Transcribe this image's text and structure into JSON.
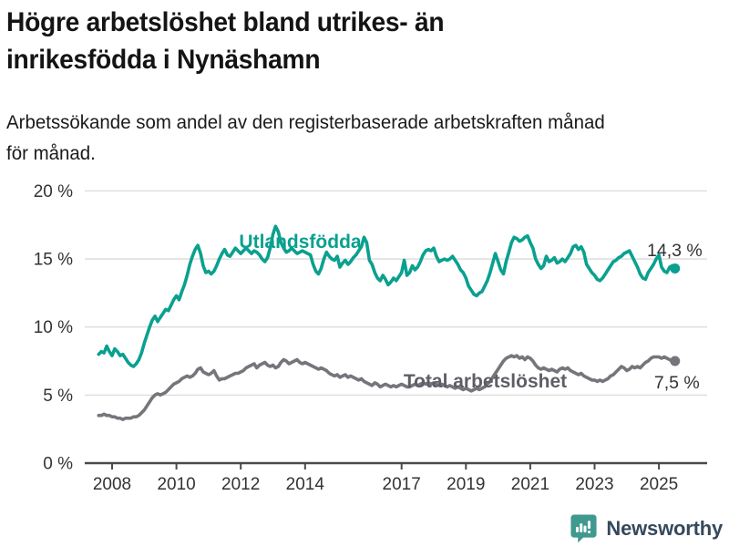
{
  "header": {
    "title_lines": [
      "Högre arbetslöshet bland utrikes- än",
      "inrikesfödda i Nynäshamn"
    ],
    "subtitle_lines": [
      "Arbetssökande som andel av den registerbaserade arbetskraften månad",
      "för månad."
    ]
  },
  "footer": {
    "brand": "Newsworthy",
    "logo_icon": "newsworthy-speech-bubble-bar-chart-icon"
  },
  "colors": {
    "teal": "#0aa08f",
    "gray_line": "#76757b",
    "gray_label": "#5f5e66",
    "annotation": "#333333",
    "tick_text": "#333333",
    "grid": "#dcdcdc",
    "axis": "#4a4a4a",
    "title_text": "#141414",
    "brand_text": "#35485c",
    "logo_teal": "#40998f"
  },
  "chart_data": {
    "type": "line",
    "title": "Högre arbetslöshet bland utrikes- än inrikesfödda i Nynäshamn",
    "subtitle": "Arbetssökande som andel av den registerbaserade arbetskraften månad för månad.",
    "x_unit": "year, monthly samples",
    "x_start": 2007.583,
    "x_step": 0.083333,
    "xlim": [
      2007.15,
      2026.5
    ],
    "ylim": [
      0,
      20
    ],
    "grid": "horizontal",
    "xticks": [
      2008,
      2010,
      2012,
      2014,
      2017,
      2019,
      2021,
      2023,
      2025
    ],
    "yticks": [
      {
        "value": 0,
        "label": "0 %"
      },
      {
        "value": 5,
        "label": "5 %"
      },
      {
        "value": 10,
        "label": "10 %"
      },
      {
        "value": 15,
        "label": "15 %"
      },
      {
        "value": 20,
        "label": "20 %"
      }
    ],
    "series": [
      {
        "id": "utlandsfodda",
        "name": "Utlandsfödda",
        "color": "#0aa08f",
        "label_color": "#0aa08f",
        "label_pos": [
          2011.95,
          15.81
        ],
        "end_label": "14,3 %",
        "end_value": 14.3,
        "end_label_offset": [
          30,
          -13.5
        ],
        "values": [
          8.0,
          8.2,
          8.1,
          8.6,
          8.2,
          7.9,
          8.4,
          8.2,
          7.9,
          8.0,
          7.7,
          7.4,
          7.2,
          7.1,
          7.3,
          7.6,
          8.1,
          8.8,
          9.4,
          10.0,
          10.5,
          10.8,
          10.4,
          10.7,
          11.0,
          11.3,
          11.2,
          11.6,
          12.0,
          12.3,
          12.0,
          12.6,
          13.1,
          13.8,
          14.6,
          15.2,
          15.7,
          16.0,
          15.4,
          14.5,
          14.0,
          14.1,
          13.9,
          14.1,
          14.5,
          15.0,
          15.4,
          15.7,
          15.3,
          15.2,
          15.5,
          15.8,
          15.6,
          15.4,
          15.6,
          15.8,
          15.6,
          15.4,
          15.6,
          15.5,
          15.3,
          15.0,
          14.8,
          15.1,
          15.8,
          16.8,
          17.4,
          17.0,
          16.2,
          15.8,
          15.5,
          15.6,
          15.8,
          15.6,
          15.4,
          15.5,
          15.6,
          15.5,
          15.4,
          15.3,
          14.6,
          14.1,
          13.9,
          14.3,
          15.0,
          15.5,
          15.2,
          15.0,
          14.9,
          15.2,
          14.4,
          14.7,
          14.9,
          14.6,
          14.8,
          15.1,
          15.3,
          15.6,
          15.9,
          16.6,
          16.2,
          14.9,
          14.6,
          14.0,
          13.6,
          13.4,
          13.8,
          13.5,
          13.1,
          13.3,
          13.6,
          13.4,
          13.7,
          14.0,
          14.9,
          13.8,
          14.0,
          14.5,
          14.2,
          14.4,
          14.8,
          15.3,
          15.6,
          15.7,
          15.6,
          15.8,
          15.2,
          14.8,
          14.9,
          15.0,
          14.9,
          15.0,
          15.2,
          14.9,
          14.6,
          14.2,
          14.0,
          13.6,
          13.0,
          12.7,
          12.4,
          12.3,
          12.5,
          12.6,
          13.0,
          13.4,
          14.0,
          14.7,
          15.4,
          14.8,
          14.2,
          13.9,
          14.8,
          15.5,
          16.2,
          16.6,
          16.5,
          16.3,
          16.4,
          16.6,
          16.7,
          16.2,
          15.8,
          15.0,
          14.6,
          14.3,
          14.5,
          15.2,
          14.8,
          14.9,
          15.1,
          14.7,
          14.8,
          15.0,
          14.8,
          15.1,
          15.4,
          15.9,
          16.0,
          15.7,
          15.9,
          15.5,
          14.6,
          14.3,
          14.0,
          13.8,
          13.5,
          13.4,
          13.6,
          13.9,
          14.2,
          14.5,
          14.8,
          14.9,
          15.1,
          15.2,
          15.4,
          15.5,
          15.6,
          15.2,
          14.8,
          14.4,
          13.9,
          13.6,
          13.5,
          14.0,
          14.3,
          14.6,
          15.0,
          15.3,
          14.4,
          14.1,
          14.0,
          14.4,
          14.5,
          14.3
        ]
      },
      {
        "id": "total-arbetsloshet",
        "name": "Total arbetslöshet",
        "color": "#76757b",
        "label_color": "#5f5e66",
        "label_pos": [
          2017.06,
          5.56
        ],
        "end_label": "7,5 %",
        "end_value": 7.5,
        "end_label_offset": [
          27,
          30
        ],
        "values": [
          3.5,
          3.5,
          3.6,
          3.5,
          3.5,
          3.4,
          3.4,
          3.3,
          3.3,
          3.2,
          3.3,
          3.3,
          3.3,
          3.4,
          3.4,
          3.5,
          3.7,
          3.9,
          4.2,
          4.5,
          4.8,
          5.0,
          5.1,
          5.0,
          5.1,
          5.2,
          5.4,
          5.6,
          5.8,
          5.9,
          6.0,
          6.2,
          6.3,
          6.4,
          6.3,
          6.4,
          6.6,
          6.9,
          7.0,
          6.7,
          6.6,
          6.5,
          6.6,
          6.8,
          6.4,
          6.1,
          6.2,
          6.2,
          6.3,
          6.4,
          6.5,
          6.6,
          6.6,
          6.7,
          6.8,
          7.0,
          7.1,
          7.2,
          7.3,
          7.0,
          7.2,
          7.3,
          7.4,
          7.2,
          7.1,
          7.2,
          7.0,
          7.1,
          7.4,
          7.6,
          7.5,
          7.3,
          7.4,
          7.5,
          7.6,
          7.4,
          7.3,
          7.4,
          7.3,
          7.2,
          7.1,
          7.0,
          6.9,
          7.0,
          6.9,
          6.8,
          6.6,
          6.5,
          6.4,
          6.5,
          6.3,
          6.4,
          6.5,
          6.3,
          6.4,
          6.3,
          6.2,
          6.1,
          6.2,
          6.0,
          5.9,
          5.8,
          5.7,
          5.9,
          5.8,
          5.6,
          5.7,
          5.8,
          5.7,
          5.6,
          5.7,
          5.6,
          5.7,
          5.8,
          5.7,
          5.6,
          5.6,
          5.7,
          5.8,
          5.7,
          5.8,
          5.9,
          5.8,
          5.9,
          5.8,
          5.9,
          5.8,
          5.7,
          5.8,
          5.7,
          5.6,
          5.7,
          5.6,
          5.5,
          5.6,
          5.5,
          5.4,
          5.5,
          5.4,
          5.3,
          5.4,
          5.5,
          5.4,
          5.5,
          5.6,
          5.8,
          6.0,
          6.3,
          6.6,
          6.9,
          7.2,
          7.5,
          7.7,
          7.8,
          7.9,
          7.8,
          7.9,
          7.7,
          7.8,
          7.6,
          7.8,
          7.7,
          7.5,
          7.2,
          7.0,
          6.9,
          7.0,
          6.9,
          6.8,
          6.9,
          6.8,
          6.7,
          6.9,
          7.0,
          6.9,
          7.0,
          6.8,
          6.7,
          6.6,
          6.5,
          6.6,
          6.4,
          6.3,
          6.2,
          6.1,
          6.1,
          6.0,
          6.1,
          6.0,
          6.1,
          6.2,
          6.4,
          6.5,
          6.7,
          6.9,
          7.1,
          7.0,
          6.8,
          6.9,
          7.1,
          7.0,
          7.1,
          7.0,
          7.2,
          7.4,
          7.5,
          7.7,
          7.8,
          7.8,
          7.8,
          7.7,
          7.8,
          7.7,
          7.6,
          7.5,
          7.5
        ]
      }
    ]
  }
}
